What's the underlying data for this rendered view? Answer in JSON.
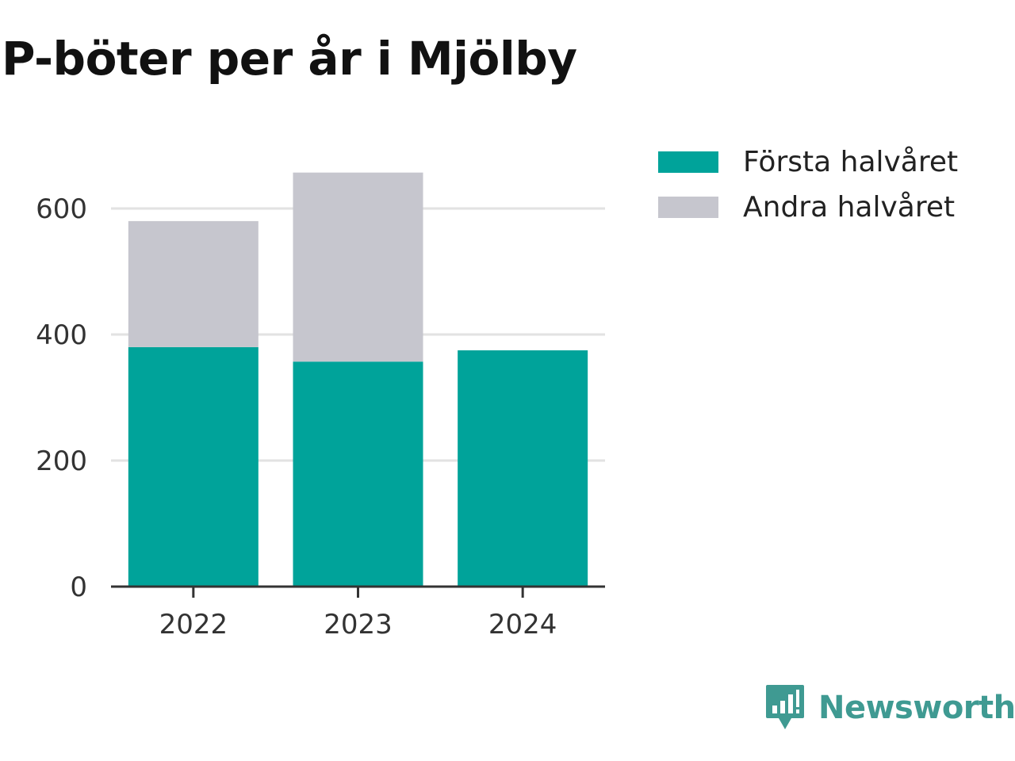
{
  "chart_data": {
    "type": "bar",
    "stacked": true,
    "title": "P-böter per år i Mjölby",
    "xlabel": "",
    "ylabel": "",
    "categories": [
      "2022",
      "2023",
      "2024"
    ],
    "series": [
      {
        "name": "Första halvåret",
        "values": [
          380,
          357,
          375
        ],
        "color": "#00a39a"
      },
      {
        "name": "Andra halvåret",
        "values": [
          200,
          300,
          0
        ],
        "color": "#c6c6ce"
      }
    ],
    "ylim": [
      0,
      700
    ],
    "yticks": [
      0,
      200,
      400,
      600
    ],
    "grid": true,
    "legend": "top-right"
  },
  "brand": {
    "name": "Newsworthy",
    "icon": "newsworthy-logo-icon"
  }
}
